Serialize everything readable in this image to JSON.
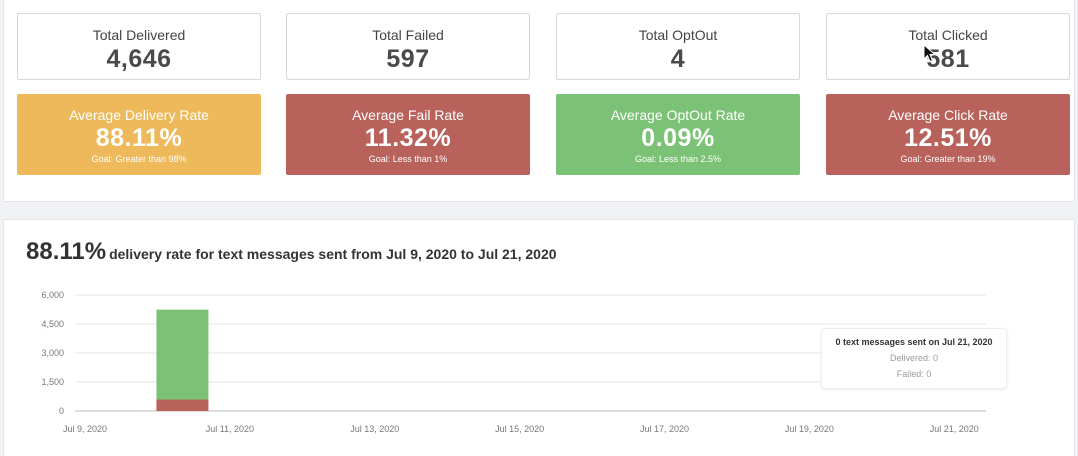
{
  "totals": [
    {
      "label": "Total Delivered",
      "value": "4,646"
    },
    {
      "label": "Total Failed",
      "value": "597"
    },
    {
      "label": "Total OptOut",
      "value": "4"
    },
    {
      "label": "Total Clicked",
      "value": "581"
    }
  ],
  "rates": [
    {
      "label": "Average Delivery Rate",
      "value": "88.11%",
      "goal": "Goal: Greater than 98%",
      "color": "#eeb95a"
    },
    {
      "label": "Average Fail Rate",
      "value": "11.32%",
      "goal": "Goal: Less than 1%",
      "color": "#b9625c"
    },
    {
      "label": "Average OptOut Rate",
      "value": "0.09%",
      "goal": "Goal: Less than 2.5%",
      "color": "#7cc276"
    },
    {
      "label": "Average Click Rate",
      "value": "12.51%",
      "goal": "Goal: Greater than 19%",
      "color": "#b9625c"
    }
  ],
  "headline": {
    "rate": "88.11%",
    "text": "delivery rate for text messages sent from Jul 9, 2020 to Jul 21, 2020"
  },
  "tooltip": {
    "title": "0 text messages sent on Jul 21, 2020",
    "delivered": "Delivered: 0",
    "failed": "Failed: 0"
  },
  "chart_data": {
    "type": "bar",
    "stacked": true,
    "x": [
      "Jul 9, 2020",
      "Jul 10, 2020",
      "Jul 11, 2020",
      "Jul 12, 2020",
      "Jul 13, 2020",
      "Jul 14, 2020",
      "Jul 15, 2020",
      "Jul 16, 2020",
      "Jul 17, 2020",
      "Jul 18, 2020",
      "Jul 19, 2020",
      "Jul 20, 2020",
      "Jul 21, 2020"
    ],
    "x_tick_labels": [
      "Jul 9, 2020",
      "Jul 11, 2020",
      "Jul 13, 2020",
      "Jul 15, 2020",
      "Jul 17, 2020",
      "Jul 19, 2020",
      "Jul 21, 2020"
    ],
    "y_ticks": [
      "6,000",
      "4,500",
      "3,000",
      "1,500",
      "0"
    ],
    "ylim": [
      0,
      6000
    ],
    "series": [
      {
        "name": "Failed",
        "color": "#b9625c",
        "values": [
          0,
          597,
          0,
          0,
          0,
          0,
          0,
          0,
          0,
          0,
          0,
          0,
          0
        ]
      },
      {
        "name": "Delivered",
        "color": "#7cc276",
        "values": [
          0,
          4646,
          0,
          0,
          0,
          0,
          0,
          0,
          0,
          0,
          0,
          0,
          0
        ]
      }
    ],
    "grid": true
  }
}
